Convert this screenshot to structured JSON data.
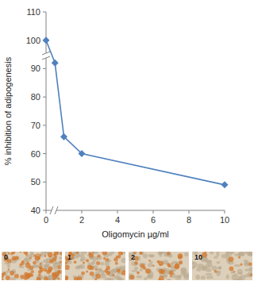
{
  "chart_data": {
    "type": "line",
    "x_label": "Oligomycin µg/ml",
    "y_label": "% inhibition of adipogenesis",
    "x": [
      0,
      0.5,
      1,
      2,
      10
    ],
    "values": [
      100,
      92,
      66,
      60,
      49
    ],
    "color": "#4f81bd",
    "marker": "diamond",
    "xlim": [
      0,
      10
    ],
    "ylim": [
      40,
      110
    ],
    "xticks": [
      0,
      2,
      4,
      6,
      8,
      10
    ],
    "yticks": [
      40,
      50,
      60,
      70,
      80,
      90,
      100,
      110
    ],
    "grid": false
  },
  "image_panels": {
    "labels": [
      "0",
      "1",
      "2",
      "10"
    ]
  }
}
